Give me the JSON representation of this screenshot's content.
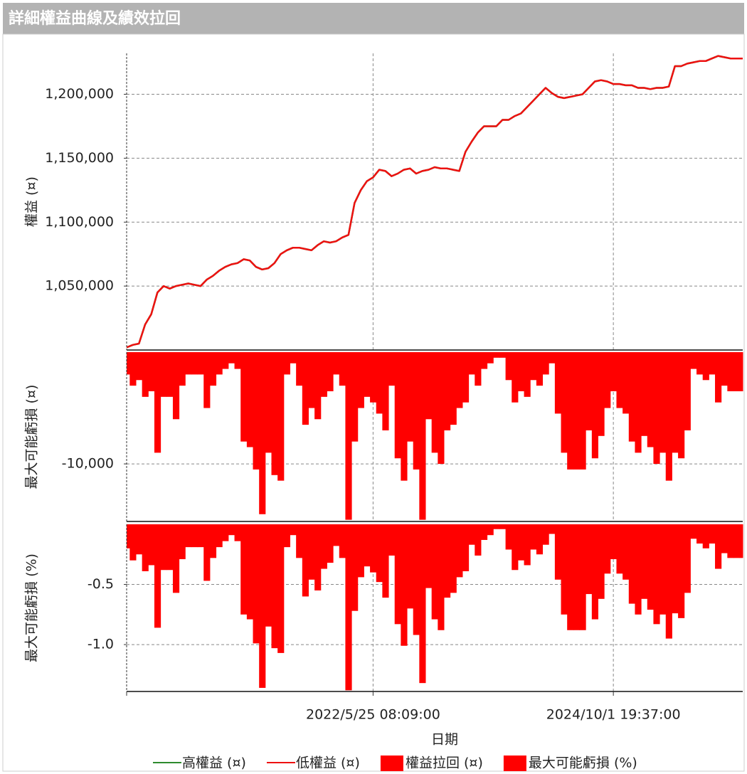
{
  "header": {
    "title": "詳細權益曲線及績效拉回"
  },
  "chart_data": [
    {
      "type": "line",
      "y_label": "權益 (¤)",
      "ylim": [
        1000000,
        1232000
      ],
      "yticks": [
        {
          "value": 1050000,
          "label": "1,050,000"
        },
        {
          "value": 1100000,
          "label": "1,100,000"
        },
        {
          "value": 1150000,
          "label": "1,150,000"
        },
        {
          "value": 1200000,
          "label": "1,200,000"
        }
      ],
      "grid": true,
      "series": [
        {
          "name": "高權益 (¤)",
          "color": "#2e8b2e",
          "values": [
            1002000,
            1004000,
            1005000,
            1020000,
            1028000,
            1045000,
            1050000,
            1048000,
            1050000,
            1051000,
            1052000,
            1051000,
            1050000,
            1055000,
            1058000,
            1062000,
            1065000,
            1067000,
            1068000,
            1071000,
            1070000,
            1065000,
            1063000,
            1064000,
            1068000,
            1075000,
            1078000,
            1080000,
            1080000,
            1079000,
            1078000,
            1082000,
            1085000,
            1084000,
            1085000,
            1088000,
            1090000,
            1115000,
            1125000,
            1132000,
            1135000,
            1141000,
            1140000,
            1136000,
            1138000,
            1141000,
            1142000,
            1138000,
            1140000,
            1141000,
            1143000,
            1142000,
            1142000,
            1141000,
            1140000,
            1155000,
            1163000,
            1170000,
            1175000,
            1175000,
            1175000,
            1180000,
            1180000,
            1183000,
            1185000,
            1190000,
            1195000,
            1200000,
            1205000,
            1201000,
            1198000,
            1197000,
            1198000,
            1199000,
            1200000,
            1205000,
            1210000,
            1211000,
            1210000,
            1208000,
            1208000,
            1207000,
            1207000,
            1205000,
            1205000,
            1204000,
            1205000,
            1205000,
            1206000,
            1222000,
            1222000,
            1224000,
            1225000,
            1226000,
            1226000,
            1228000,
            1230000,
            1229000,
            1228000,
            1228000,
            1228000
          ]
        },
        {
          "name": "低權益 (¤)",
          "color": "#ee1111",
          "values": [
            1002000,
            1004000,
            1005000,
            1020000,
            1028000,
            1045000,
            1050000,
            1048000,
            1050000,
            1051000,
            1052000,
            1051000,
            1050000,
            1055000,
            1058000,
            1062000,
            1065000,
            1067000,
            1068000,
            1071000,
            1070000,
            1065000,
            1063000,
            1064000,
            1068000,
            1075000,
            1078000,
            1080000,
            1080000,
            1079000,
            1078000,
            1082000,
            1085000,
            1084000,
            1085000,
            1088000,
            1090000,
            1115000,
            1125000,
            1132000,
            1135000,
            1141000,
            1140000,
            1136000,
            1138000,
            1141000,
            1142000,
            1138000,
            1140000,
            1141000,
            1143000,
            1142000,
            1142000,
            1141000,
            1140000,
            1155000,
            1163000,
            1170000,
            1175000,
            1175000,
            1175000,
            1180000,
            1180000,
            1183000,
            1185000,
            1190000,
            1195000,
            1200000,
            1205000,
            1201000,
            1198000,
            1197000,
            1198000,
            1199000,
            1200000,
            1205000,
            1210000,
            1211000,
            1210000,
            1208000,
            1208000,
            1207000,
            1207000,
            1205000,
            1205000,
            1204000,
            1205000,
            1205000,
            1206000,
            1222000,
            1222000,
            1224000,
            1225000,
            1226000,
            1226000,
            1228000,
            1230000,
            1229000,
            1228000,
            1228000,
            1228000
          ]
        }
      ]
    },
    {
      "type": "bar",
      "y_label": "最大可能虧損 (¤)",
      "ylim": [
        -15150,
        0
      ],
      "yticks": [
        {
          "value": -10000,
          "label": "-10,000"
        }
      ],
      "grid": true,
      "series": [
        {
          "name": "權益拉回 (¤)",
          "color": "#ff0000",
          "values": [
            -2000,
            -3000,
            -2500,
            -4000,
            -3500,
            -9000,
            -4000,
            -4000,
            -6000,
            -3000,
            -2000,
            -2000,
            -2000,
            -5000,
            -3000,
            -2000,
            -1500,
            -1000,
            -1500,
            -8000,
            -8500,
            -10500,
            -14500,
            -9000,
            -11000,
            -11500,
            -2000,
            -1000,
            -3000,
            -6500,
            -5000,
            -6000,
            -4000,
            -3500,
            -2000,
            -3000,
            -15000,
            -8000,
            -5000,
            -4000,
            -4500,
            -5500,
            -7000,
            -3000,
            -9500,
            -11500,
            -8000,
            -10500,
            -15000,
            -6000,
            -9000,
            -10000,
            -7000,
            -6500,
            -5000,
            -4500,
            -2000,
            -3000,
            -1500,
            -1000,
            -500,
            -500,
            -2500,
            -4500,
            -3500,
            -4000,
            -2500,
            -3000,
            -2000,
            -1000,
            -5500,
            -9000,
            -10500,
            -10500,
            -10500,
            -7000,
            -9500,
            -7500,
            -5000,
            -3500,
            -5000,
            -5500,
            -8000,
            -9000,
            -7500,
            -8500,
            -10000,
            -9000,
            -11500,
            -9000,
            -9500,
            -7000,
            -1500,
            -2000,
            -2500,
            -2000,
            -4500,
            -3000,
            -3500,
            -3500,
            -3500
          ]
        }
      ]
    },
    {
      "type": "bar",
      "y_label": "最大可能虧損 (%)",
      "x_label": "日期",
      "ylim": [
        -1.39,
        0
      ],
      "yticks": [
        {
          "value": -0.5,
          "label": "-0.5"
        },
        {
          "value": -1,
          "label": "-1.0"
        }
      ],
      "grid": true,
      "categories": [
        null,
        null,
        null,
        null,
        null,
        null,
        null,
        null,
        null,
        null,
        null,
        null,
        null,
        null,
        null,
        null,
        null,
        null,
        null,
        null,
        null,
        null,
        null,
        null,
        null,
        null,
        null,
        null,
        null,
        null,
        null,
        null,
        null,
        null,
        null,
        null,
        null,
        null,
        null,
        null,
        "2022/5/25 08:09:00",
        null,
        null,
        null,
        null,
        null,
        null,
        null,
        null,
        null,
        null,
        null,
        null,
        null,
        null,
        null,
        null,
        null,
        null,
        null,
        null,
        null,
        null,
        null,
        null,
        null,
        null,
        null,
        null,
        null,
        null,
        null,
        null,
        null,
        null,
        null,
        null,
        null,
        null,
        "2024/10/1 19:37:00",
        null,
        null,
        null,
        null,
        null,
        null,
        null,
        null,
        null,
        null,
        null,
        null,
        null,
        null,
        null,
        null,
        null,
        null,
        null,
        null,
        null
      ],
      "series": [
        {
          "name": "最大可能虧損 (%)",
          "color": "#ff0000",
          "values": [
            -0.2,
            -0.3,
            -0.25,
            -0.39,
            -0.34,
            -0.86,
            -0.38,
            -0.38,
            -0.57,
            -0.29,
            -0.19,
            -0.19,
            -0.19,
            -0.47,
            -0.28,
            -0.19,
            -0.14,
            -0.09,
            -0.14,
            -0.75,
            -0.79,
            -0.99,
            -1.36,
            -0.85,
            -1.03,
            -1.07,
            -0.19,
            -0.09,
            -0.28,
            -0.6,
            -0.46,
            -0.55,
            -0.37,
            -0.32,
            -0.18,
            -0.28,
            -1.38,
            -0.72,
            -0.44,
            -0.35,
            -0.4,
            -0.48,
            -0.61,
            -0.26,
            -0.83,
            -1.01,
            -0.7,
            -0.92,
            -1.32,
            -0.53,
            -0.79,
            -0.88,
            -0.61,
            -0.57,
            -0.44,
            -0.39,
            -0.17,
            -0.26,
            -0.13,
            -0.09,
            -0.04,
            -0.04,
            -0.21,
            -0.38,
            -0.3,
            -0.34,
            -0.21,
            -0.25,
            -0.17,
            -0.08,
            -0.46,
            -0.75,
            -0.88,
            -0.88,
            -0.88,
            -0.58,
            -0.79,
            -0.62,
            -0.41,
            -0.29,
            -0.41,
            -0.46,
            -0.66,
            -0.75,
            -0.62,
            -0.71,
            -0.83,
            -0.75,
            -0.95,
            -0.74,
            -0.78,
            -0.57,
            -0.12,
            -0.16,
            -0.2,
            -0.16,
            -0.37,
            -0.24,
            -0.28,
            -0.28,
            -0.28
          ]
        }
      ]
    }
  ]
}
